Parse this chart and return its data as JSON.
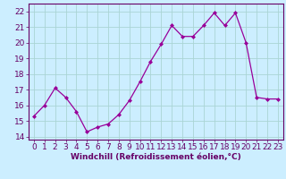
{
  "x": [
    0,
    1,
    2,
    3,
    4,
    5,
    6,
    7,
    8,
    9,
    10,
    11,
    12,
    13,
    14,
    15,
    16,
    17,
    18,
    19,
    20,
    21,
    22,
    23
  ],
  "y": [
    15.3,
    16.0,
    17.1,
    16.5,
    15.6,
    14.3,
    14.6,
    14.8,
    15.4,
    16.3,
    17.5,
    18.8,
    19.9,
    21.1,
    20.4,
    20.4,
    21.1,
    21.9,
    21.1,
    21.9,
    20.0,
    16.5,
    16.4,
    16.4
  ],
  "line_color": "#990099",
  "marker": "D",
  "marker_size": 2,
  "bg_color": "#cceeff",
  "grid_color": "#aad4d4",
  "xlabel": "Windchill (Refroidissement éolien,°C)",
  "xlim": [
    -0.5,
    23.5
  ],
  "ylim": [
    13.8,
    22.5
  ],
  "yticks": [
    14,
    15,
    16,
    17,
    18,
    19,
    20,
    21,
    22
  ],
  "xticks": [
    0,
    1,
    2,
    3,
    4,
    5,
    6,
    7,
    8,
    9,
    10,
    11,
    12,
    13,
    14,
    15,
    16,
    17,
    18,
    19,
    20,
    21,
    22,
    23
  ],
  "axis_color": "#660066",
  "tick_color": "#660066",
  "label_color": "#660066",
  "tick_fontsize": 6.5,
  "xlabel_fontsize": 6.5
}
